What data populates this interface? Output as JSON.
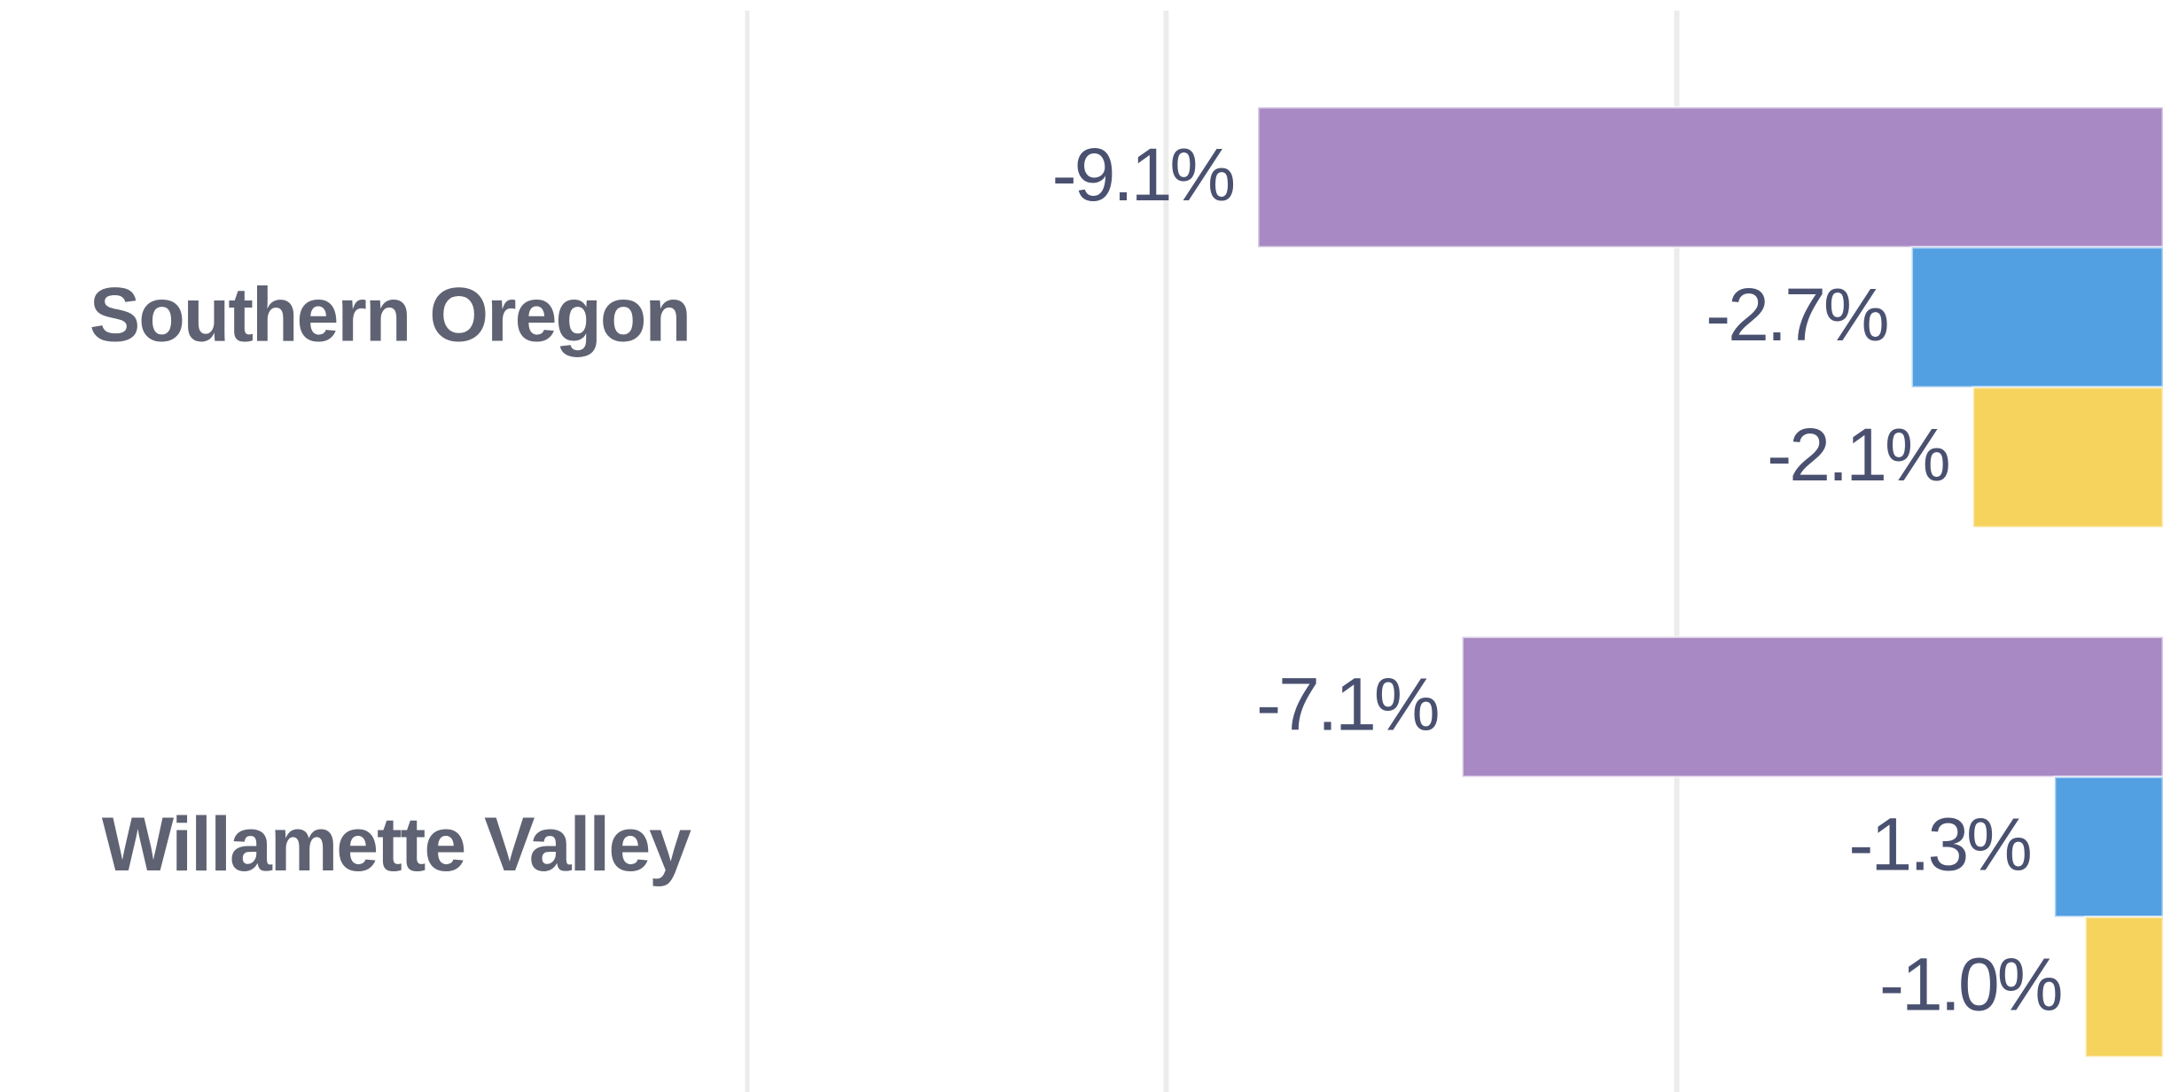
{
  "chart_data": {
    "type": "barh",
    "categories": [
      "Southern Oregon",
      "Willamette Valley"
    ],
    "series": [
      {
        "color": "#a889c4",
        "values": [
          -9.1,
          -7.1
        ],
        "value_labels": [
          "-9.1%",
          "-7.1%"
        ]
      },
      {
        "color": "#529fe2",
        "values": [
          -2.7,
          -1.3
        ],
        "value_labels": [
          "-2.7%",
          "-1.3%"
        ]
      },
      {
        "color": "#f6d35c",
        "values": [
          -2.1,
          -1.0
        ],
        "value_labels": [
          "-2.1%",
          "-1.0%"
        ]
      }
    ],
    "xlim": [
      -14.1,
      -0.24
    ],
    "xticks": [
      -10,
      -5
    ],
    "grid": true
  }
}
